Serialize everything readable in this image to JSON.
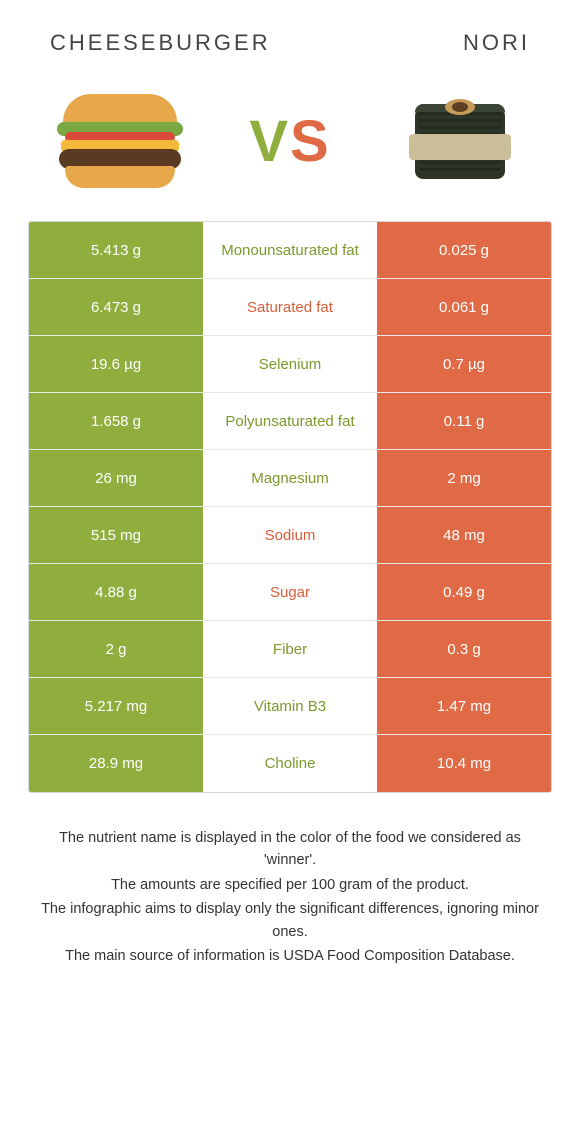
{
  "header": {
    "left_title": "Cheeseburger",
    "right_title": "Nori"
  },
  "vs": {
    "v": "V",
    "s": "S"
  },
  "colors": {
    "left_bg": "#8fae3d",
    "right_bg": "#df6a45",
    "left_text": "#7a9a2c",
    "right_text": "#d85e3a",
    "border": "#d9d9d9"
  },
  "rows": [
    {
      "left": "5.413 g",
      "label": "Monounsaturated fat",
      "right": "0.025 g",
      "winner": "left"
    },
    {
      "left": "6.473 g",
      "label": "Saturated fat",
      "right": "0.061 g",
      "winner": "right"
    },
    {
      "left": "19.6 µg",
      "label": "Selenium",
      "right": "0.7 µg",
      "winner": "left"
    },
    {
      "left": "1.658 g",
      "label": "Polyunsaturated fat",
      "right": "0.11 g",
      "winner": "left"
    },
    {
      "left": "26 mg",
      "label": "Magnesium",
      "right": "2 mg",
      "winner": "left"
    },
    {
      "left": "515 mg",
      "label": "Sodium",
      "right": "48 mg",
      "winner": "right"
    },
    {
      "left": "4.88 g",
      "label": "Sugar",
      "right": "0.49 g",
      "winner": "right"
    },
    {
      "left": "2 g",
      "label": "Fiber",
      "right": "0.3 g",
      "winner": "left"
    },
    {
      "left": "5.217 mg",
      "label": "Vitamin B3",
      "right": "1.47 mg",
      "winner": "left"
    },
    {
      "left": "28.9 mg",
      "label": "Choline",
      "right": "10.4 mg",
      "winner": "left"
    }
  ],
  "footnotes": [
    "The nutrient name is displayed in the color of the food we considered as 'winner'.",
    "The amounts are specified per 100 gram of the product.",
    "The infographic aims to display only the significant differences, ignoring minor ones.",
    "The main source of information is USDA Food Composition Database."
  ]
}
